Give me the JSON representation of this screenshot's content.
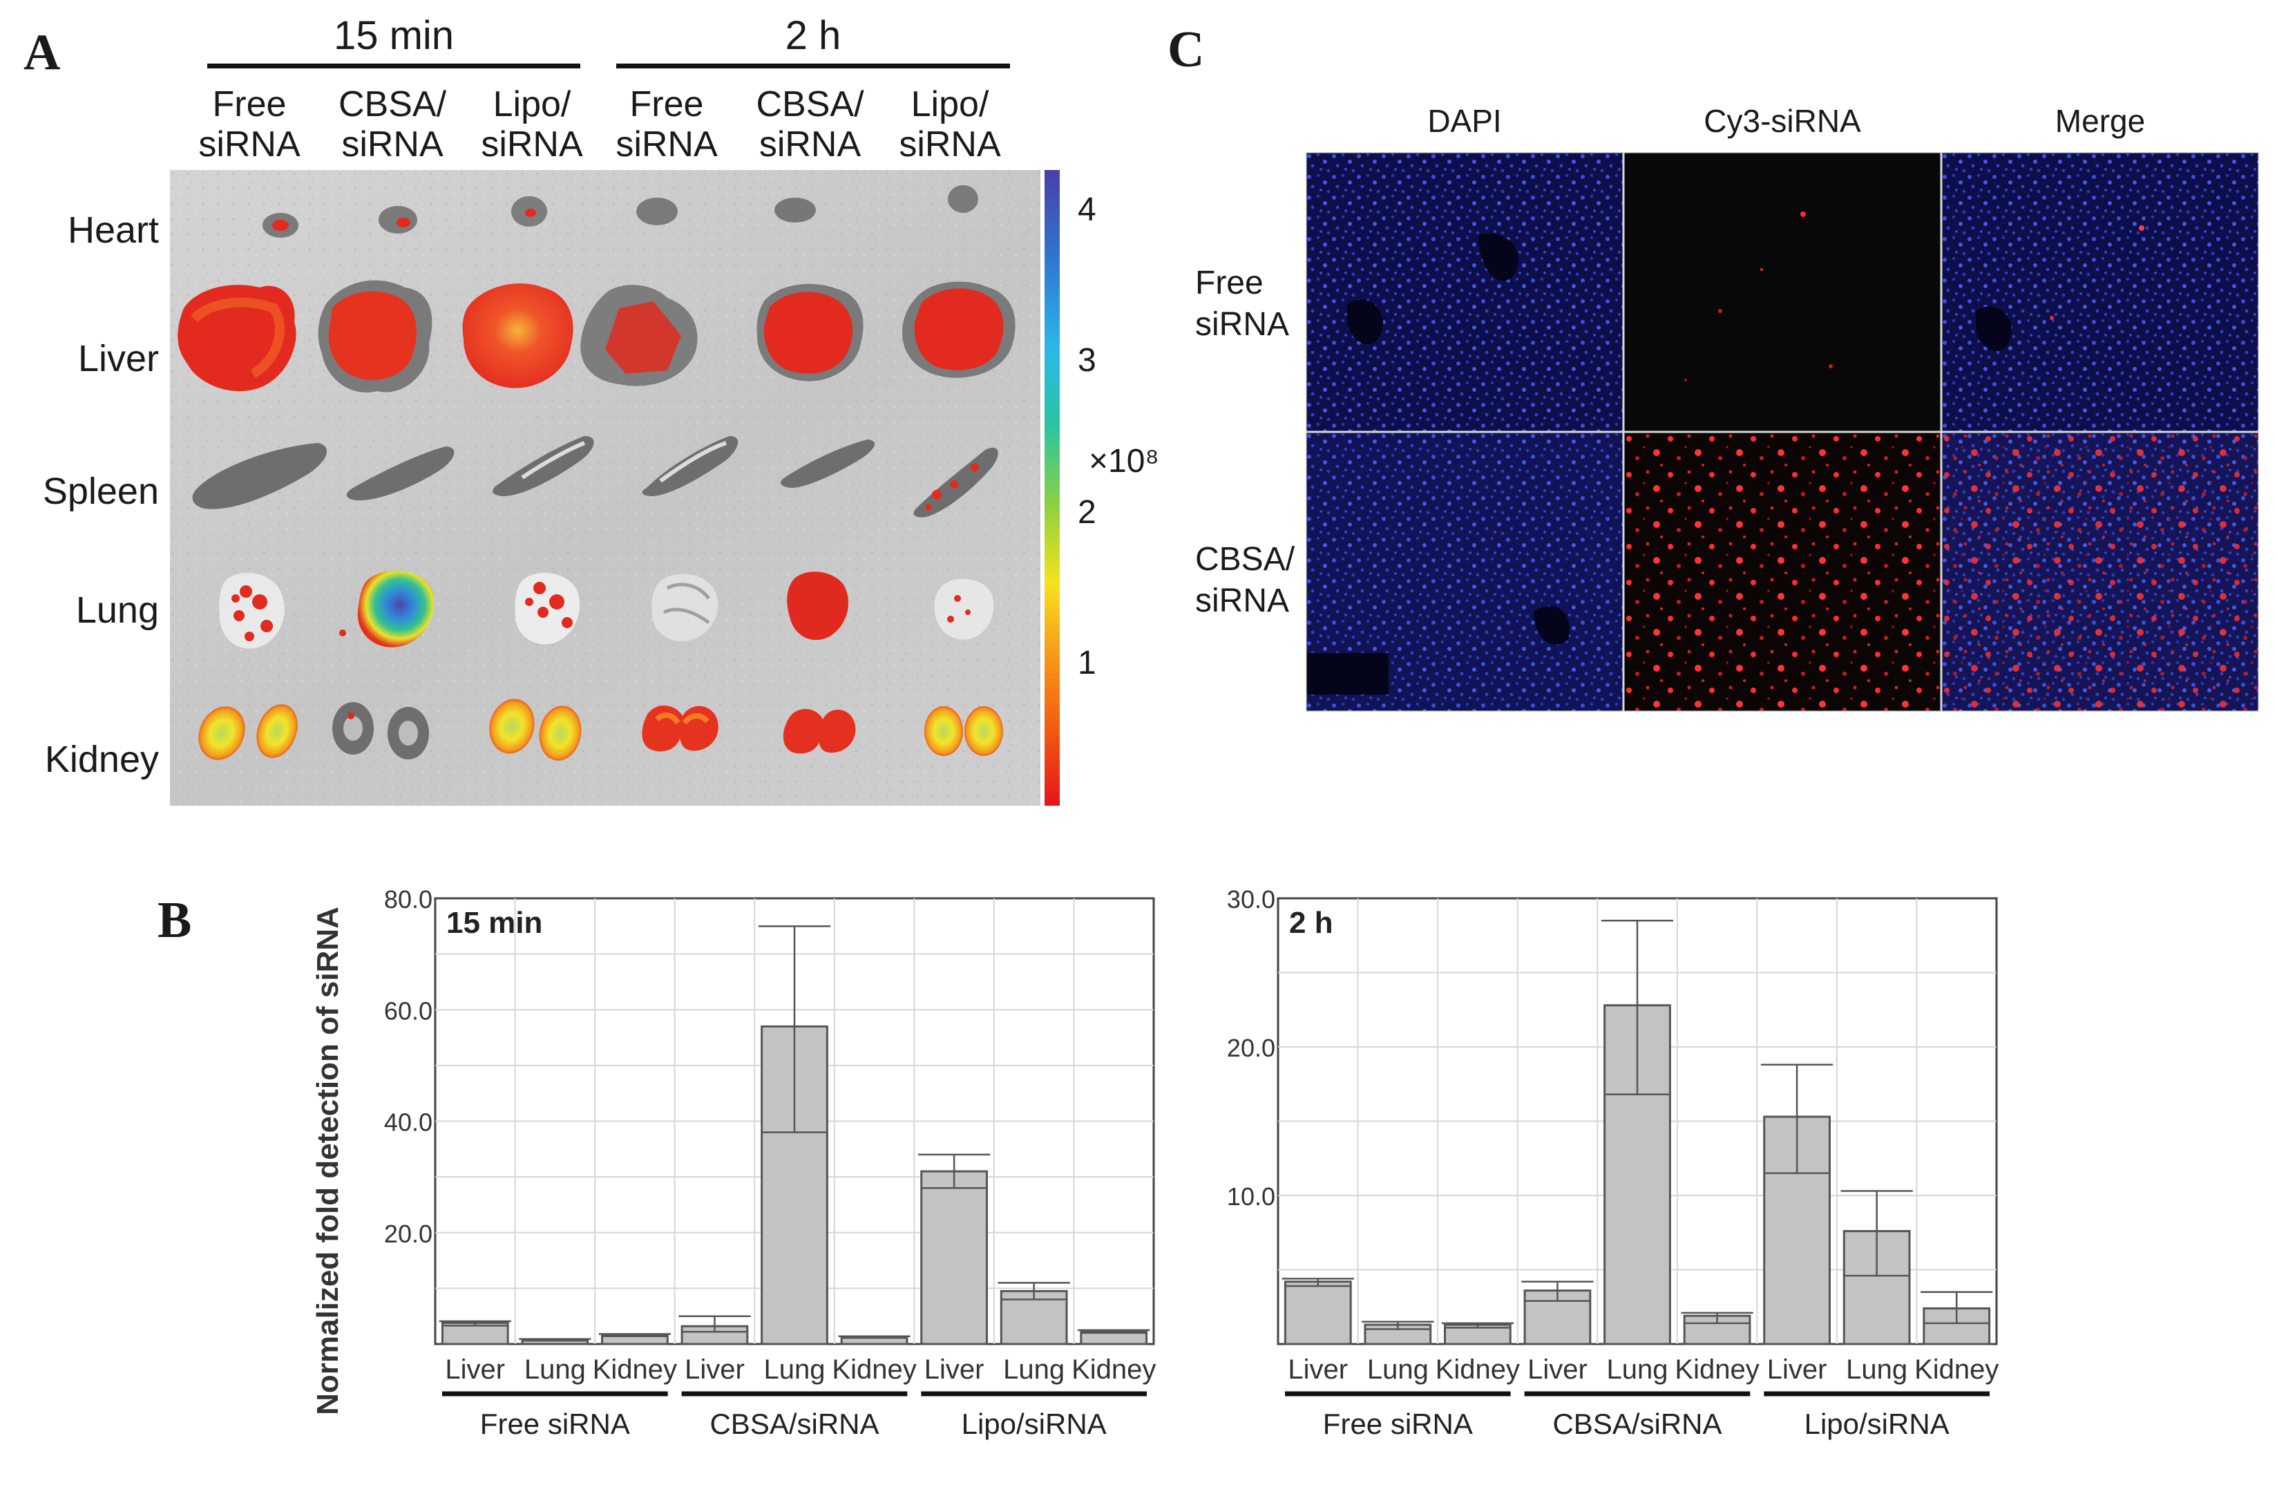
{
  "panels": {
    "A": {
      "letter": "A",
      "timepoints": [
        "15 min",
        "2 h"
      ],
      "groups": [
        "Free\nsiRNA",
        "CBSA/\nsiRNA",
        "Lipo/\nsiRNA",
        "Free\nsiRNA",
        "CBSA/\nsiRNA",
        "Lipo/\nsiRNA"
      ],
      "organs": [
        "Heart",
        "Liver",
        "Spleen",
        "Lung",
        "Kidney"
      ],
      "scale": {
        "ticks": [
          "4",
          "3",
          "2",
          "1"
        ],
        "tick_values": [
          4,
          3,
          2,
          1
        ],
        "range": [
          0,
          4.2
        ],
        "unit": "×10⁸"
      }
    },
    "B": {
      "letter": "B",
      "ylabel": "Normalized fold detection of siRNA",
      "groups": [
        "Free siRNA",
        "CBSA/siRNA",
        "Lipo/siRNA"
      ]
    },
    "C": {
      "letter": "C",
      "columns": [
        "DAPI",
        "Cy3-siRNA",
        "Merge"
      ],
      "rows": [
        "Free\nsiRNA",
        "CBSA/\nsiRNA"
      ]
    }
  },
  "chart_data": [
    {
      "type": "bar",
      "title": "15 min",
      "ylabel": "Normalized fold detection of siRNA",
      "ylim": [
        0,
        80
      ],
      "yticks": [
        0,
        20,
        40,
        60,
        80
      ],
      "ytick_labels": [
        "",
        "20.0",
        "40.0",
        "60.0",
        "80.0"
      ],
      "grid": true,
      "categories": [
        "Liver",
        "Lung",
        "Kidney",
        "Liver",
        "Lung",
        "Kidney",
        "Liver",
        "Lung",
        "Kidney"
      ],
      "groups": [
        "Free siRNA",
        "CBSA/siRNA",
        "Lipo/siRNA"
      ],
      "values": [
        3.8,
        0.8,
        1.6,
        3.2,
        57,
        1.3,
        31,
        9.5,
        2.2
      ],
      "error_low": [
        3.3,
        0.6,
        1.4,
        2.2,
        38,
        1.1,
        28,
        8.0,
        2.0
      ],
      "error_high": [
        4.1,
        0.9,
        1.8,
        5.0,
        75,
        1.4,
        34,
        11,
        2.5
      ]
    },
    {
      "type": "bar",
      "title": "2 h",
      "ylabel": "Normalized fold detection of siRNA",
      "ylim": [
        0,
        30
      ],
      "yticks": [
        0,
        10,
        20,
        30
      ],
      "ytick_labels": [
        "",
        "10.0",
        "20.0",
        "30.0"
      ],
      "grid": true,
      "categories": [
        "Liver",
        "Lung",
        "Kidney",
        "Liver",
        "Lung",
        "Kidney",
        "Liver",
        "Lung",
        "Kidney"
      ],
      "groups": [
        "Free siRNA",
        "CBSA/siRNA",
        "Lipo/siRNA"
      ],
      "values": [
        4.2,
        1.3,
        1.3,
        3.6,
        22.8,
        1.9,
        15.3,
        7.6,
        2.4
      ],
      "error_low": [
        3.9,
        1.0,
        1.1,
        2.9,
        16.8,
        1.4,
        11.5,
        4.6,
        1.4
      ],
      "error_high": [
        4.4,
        1.5,
        1.4,
        4.2,
        28.5,
        2.1,
        18.8,
        10.3,
        3.5
      ]
    }
  ],
  "colors": {
    "bar_fill": "#c3c3c3",
    "bar_stroke": "#555555",
    "grid": "#d6d6d6",
    "axis": "#444444",
    "signal_low": "#e8251e",
    "signal_high": "#3a3fb0",
    "dapi": "#2f3fd6",
    "cy3": "#ff2a2a"
  }
}
